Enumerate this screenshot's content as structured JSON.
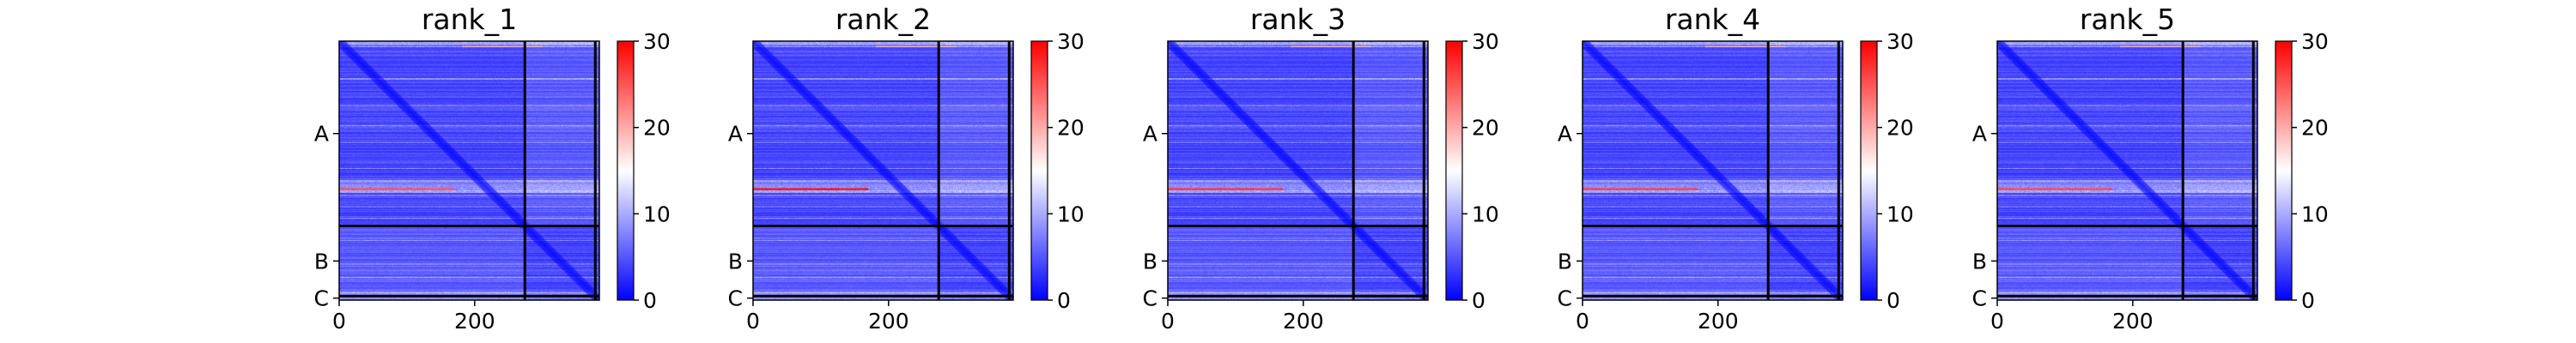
{
  "chart_data": {
    "type": "heatmap",
    "colormap": {
      "name": "bwr",
      "stops": [
        "#0000ff",
        "#ffffff",
        "#ff0000"
      ],
      "range": [
        0,
        30
      ],
      "ticks": [
        "0",
        "10",
        "20",
        "30"
      ]
    },
    "chains": [
      {
        "label": "A",
        "start": 0,
        "end": 274
      },
      {
        "label": "B",
        "start": 274,
        "end": 378
      },
      {
        "label": "C",
        "start": 378,
        "end": 384
      }
    ],
    "x_axis": {
      "range": [
        0,
        384
      ],
      "ticks": [
        {
          "value": 0,
          "label": "0"
        },
        {
          "value": 200,
          "label": "200"
        }
      ]
    },
    "y_axis": {
      "inverted": true,
      "chain_labels": [
        "A",
        "B",
        "C"
      ]
    },
    "panels": [
      {
        "title": "rank_1",
        "hot_row": 219,
        "hot_level": 0.72
      },
      {
        "title": "rank_2",
        "hot_row": 219,
        "hot_level": 1.0
      },
      {
        "title": "rank_3",
        "hot_row": 219,
        "hot_level": 0.84
      },
      {
        "title": "rank_4",
        "hot_row": 219,
        "hot_level": 0.8
      },
      {
        "title": "rank_5",
        "hot_row": 219,
        "hot_level": 0.76
      }
    ]
  }
}
